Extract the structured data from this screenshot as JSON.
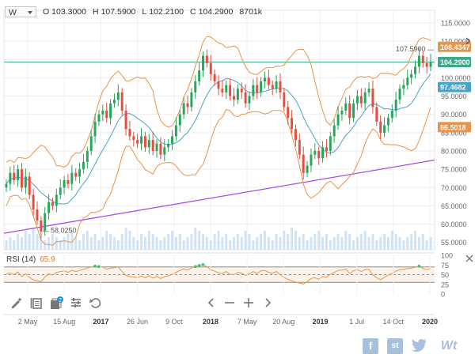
{
  "header": {
    "timeframe": "W",
    "open_label": "O",
    "open": "103.3000",
    "high_label": "H",
    "high": "107.5900",
    "low_label": "L",
    "low": "102.2100",
    "close_label": "C",
    "close": "104.2900",
    "volume": "8701k"
  },
  "rsi": {
    "label": "RSI (14)",
    "value": "65.9"
  },
  "toolbar": {
    "icons": [
      "pencil-icon",
      "notes-icon",
      "indicators-icon",
      "settings-icon",
      "undo-icon"
    ],
    "badge": "2"
  },
  "social": {
    "icons": [
      "facebook-icon",
      "stocktwits-icon",
      "twitter-icon",
      "wallmine-icon"
    ],
    "st_label": "st",
    "wt_label": "Wt"
  },
  "colors": {
    "up": "#26a65b",
    "down": "#e74c3c",
    "bollinger": "#e8944a",
    "ma": "#4aa3c8",
    "trendline": "#a84be0",
    "hline": "#3ea88a",
    "volume": "#cfe3f5",
    "rsi_line": "#e8944a",
    "badge_blue": "#2b8fc7"
  },
  "chart_data": [
    {
      "type": "candlestick",
      "x_tick_labels": [
        "2 May",
        "15 Aug",
        "2017",
        "26 Jun",
        "9 Oct",
        "2018",
        "7 May",
        "20 Aug",
        "2019",
        "1 Jul",
        "14 Oct",
        "2020"
      ],
      "y_tick_labels": [
        "55.0000",
        "60.0000",
        "65.0000",
        "70.0000",
        "75.0000",
        "80.0000",
        "85.0000",
        "90.0000",
        "95.0000",
        "100.0000",
        "105.0000",
        "110.0000",
        "115.0000"
      ],
      "ylim": [
        53,
        118
      ],
      "price_labels": [
        {
          "text": "108.4347",
          "value": 108.4347,
          "color": "#e8944a"
        },
        {
          "text": "104.2900",
          "value": 104.29,
          "color": "#3ea88a"
        },
        {
          "text": "97.4682",
          "value": 97.4682,
          "color": "#4aa3c8"
        },
        {
          "text": "86.5018",
          "value": 86.5018,
          "color": "#e8944a"
        }
      ],
      "annotations": [
        {
          "text": "107.5900",
          "value": 107.59
        },
        {
          "text": "58.0250",
          "value": 58.025
        }
      ],
      "horizontal_line": 104.29,
      "trendline": {
        "start": 57.5,
        "end": 77.5
      },
      "price_path": [
        71,
        74,
        72,
        75,
        70,
        73,
        68,
        64,
        61,
        58,
        63,
        66,
        65,
        68,
        70,
        72,
        71,
        74,
        73,
        75,
        77,
        80,
        84,
        88,
        90,
        91,
        89,
        93,
        94,
        96,
        91,
        86,
        84,
        83,
        82,
        84,
        81,
        83,
        80,
        82,
        79,
        81,
        82,
        84,
        87,
        90,
        93,
        92,
        96,
        99,
        102,
        106,
        104,
        101,
        99,
        97,
        96,
        98,
        95,
        94,
        97,
        96,
        93,
        95,
        98,
        96,
        99,
        100,
        98,
        97,
        99,
        96,
        92,
        89,
        86,
        83,
        79,
        74,
        76,
        79,
        80,
        78,
        81,
        80,
        84,
        87,
        90,
        91,
        93,
        89,
        93,
        95,
        93,
        96,
        97,
        92,
        88,
        85,
        87,
        89,
        91,
        94,
        97,
        98,
        100,
        101,
        103,
        106,
        104,
        103,
        104.29
      ],
      "volume_path": [
        3,
        4,
        3,
        5,
        4,
        6,
        5,
        7,
        5,
        4,
        3,
        4,
        5,
        4,
        3,
        4,
        5,
        6,
        4,
        3,
        5,
        6,
        4,
        5,
        3,
        4,
        6,
        5,
        4,
        3,
        5,
        7,
        6,
        4,
        3,
        5,
        4,
        6,
        5,
        4,
        3,
        4,
        5,
        6,
        4,
        5,
        3,
        4,
        5,
        7,
        6,
        5,
        4,
        3,
        5,
        6,
        4,
        5,
        3,
        4,
        5,
        4,
        6,
        5,
        3,
        4,
        5,
        6,
        4,
        3,
        5,
        4,
        6,
        5,
        7,
        6,
        4,
        5,
        3,
        4,
        5,
        6,
        4,
        5,
        3,
        4,
        5,
        4,
        6,
        5,
        3,
        4,
        5,
        6,
        4,
        5,
        3,
        4,
        5,
        4,
        6,
        5,
        4,
        3,
        4,
        5,
        6,
        4,
        5,
        3,
        4
      ]
    },
    {
      "type": "line",
      "title": "RSI (14)",
      "y_tick_labels": [
        "100",
        "75",
        "50",
        "25",
        "0"
      ],
      "ylim": [
        0,
        100
      ],
      "levels": [
        70,
        50,
        30
      ],
      "last_value": 65.9,
      "values": [
        52,
        55,
        50,
        57,
        45,
        52,
        43,
        37,
        34,
        32,
        44,
        52,
        49,
        56,
        58,
        60,
        56,
        61,
        58,
        61,
        64,
        67,
        70,
        72,
        71,
        70,
        64,
        67,
        68,
        70,
        58,
        48,
        45,
        44,
        42,
        47,
        42,
        47,
        41,
        46,
        40,
        45,
        47,
        51,
        56,
        61,
        65,
        62,
        68,
        71,
        74,
        76,
        70,
        63,
        59,
        55,
        53,
        58,
        51,
        50,
        56,
        54,
        48,
        52,
        58,
        53,
        60,
        61,
        56,
        54,
        58,
        50,
        43,
        38,
        34,
        31,
        28,
        26,
        32,
        40,
        42,
        38,
        45,
        43,
        51,
        56,
        61,
        62,
        64,
        53,
        60,
        63,
        58,
        63,
        64,
        50,
        42,
        37,
        43,
        49,
        53,
        59,
        63,
        64,
        66,
        67,
        69,
        72,
        66,
        63,
        65.9
      ]
    }
  ]
}
